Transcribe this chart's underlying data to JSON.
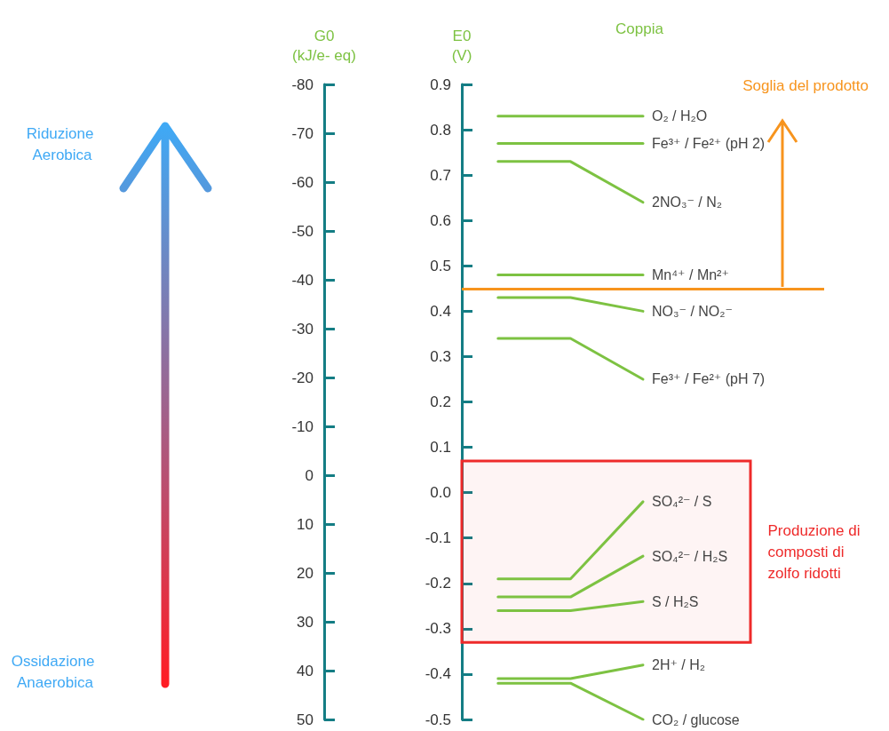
{
  "chart_data": {
    "type": "line",
    "ylabel": "E0\n(V)",
    "y2label": "G0\n(kJ/e- eq)",
    "categories": [
      null,
      null,
      null,
      null,
      null
    ],
    "series": [
      {
        "name": "O₂ / H₂O",
        "color": "#7dc242",
        "values": [
          0.83,
          0.83,
          0.83,
          null,
          null
        ]
      },
      {
        "name": "Fe³⁺ / Fe²⁺ (pH 2)",
        "color": "#7dc242",
        "values": [
          0.77,
          0.77,
          0.77,
          null,
          null
        ]
      },
      {
        "name": "2NO₃⁻ / N₂",
        "color": "#7dc242",
        "values": [
          0.73,
          0.73,
          0.64,
          null,
          null
        ]
      },
      {
        "name": "Mn⁴⁺ / Mn²⁺",
        "color": "#7dc242",
        "values": [
          0.48,
          0.48,
          0.48,
          null,
          null
        ]
      },
      {
        "name": "NO₃⁻ / NO₂⁻",
        "color": "#7dc242",
        "values": [
          0.43,
          0.43,
          0.4,
          null,
          null
        ]
      },
      {
        "name": "Fe³⁺ / Fe²⁺ (pH 7)",
        "color": "#7dc242",
        "values": [
          0.34,
          0.34,
          0.25,
          null,
          null
        ]
      },
      {
        "name": "SO₄²⁻ / S",
        "color": "#7dc242",
        "values": [
          -0.19,
          -0.19,
          -0.02,
          null,
          null
        ]
      },
      {
        "name": "SO₄²⁻ / H₂S",
        "color": "#7dc242",
        "values": [
          -0.23,
          -0.23,
          -0.14,
          null,
          null
        ]
      },
      {
        "name": "S / H₂S",
        "color": "#7dc242",
        "values": [
          -0.26,
          -0.26,
          -0.24,
          null,
          null
        ]
      },
      {
        "name": "2H⁺ / H₂",
        "color": "#7dc242",
        "values": [
          -0.41,
          -0.41,
          -0.38,
          null,
          null
        ]
      },
      {
        "name": "CO₂ / glucose",
        "color": "#7dc242",
        "values": [
          -0.42,
          -0.42,
          -0.5,
          null,
          null
        ]
      }
    ],
    "ylim": [
      -0.5,
      0.9
    ],
    "yticks": [
      0.9,
      0.8,
      0.7,
      0.6,
      0.5,
      0.4,
      0.3,
      0.2,
      0.1,
      {
        "value": 0,
        "label": "0.0"
      },
      -0.1,
      -0.2,
      -0.3,
      -0.4,
      -0.5
    ],
    "y2lim": [
      50,
      -80
    ],
    "y2ticks": [
      -80,
      -70,
      -60,
      -50,
      -40,
      -30,
      -20,
      -10,
      0,
      10,
      20,
      30,
      40,
      50
    ],
    "ref_lines": [
      {
        "axis": "y",
        "value": 0.45,
        "label": "Soglia del prodotto",
        "color": "#f7941d"
      }
    ],
    "bands": [
      {
        "axis": "y",
        "from": -0.33,
        "to": 0.07,
        "label": "Produzione di composti di zolfo ridotti",
        "color": "#ee2a2a"
      }
    ],
    "annotations": [
      "Coppia",
      "Riduzione Aerobica",
      "Ossidazione Anaerobica"
    ],
    "grid": false,
    "legend": false
  }
}
